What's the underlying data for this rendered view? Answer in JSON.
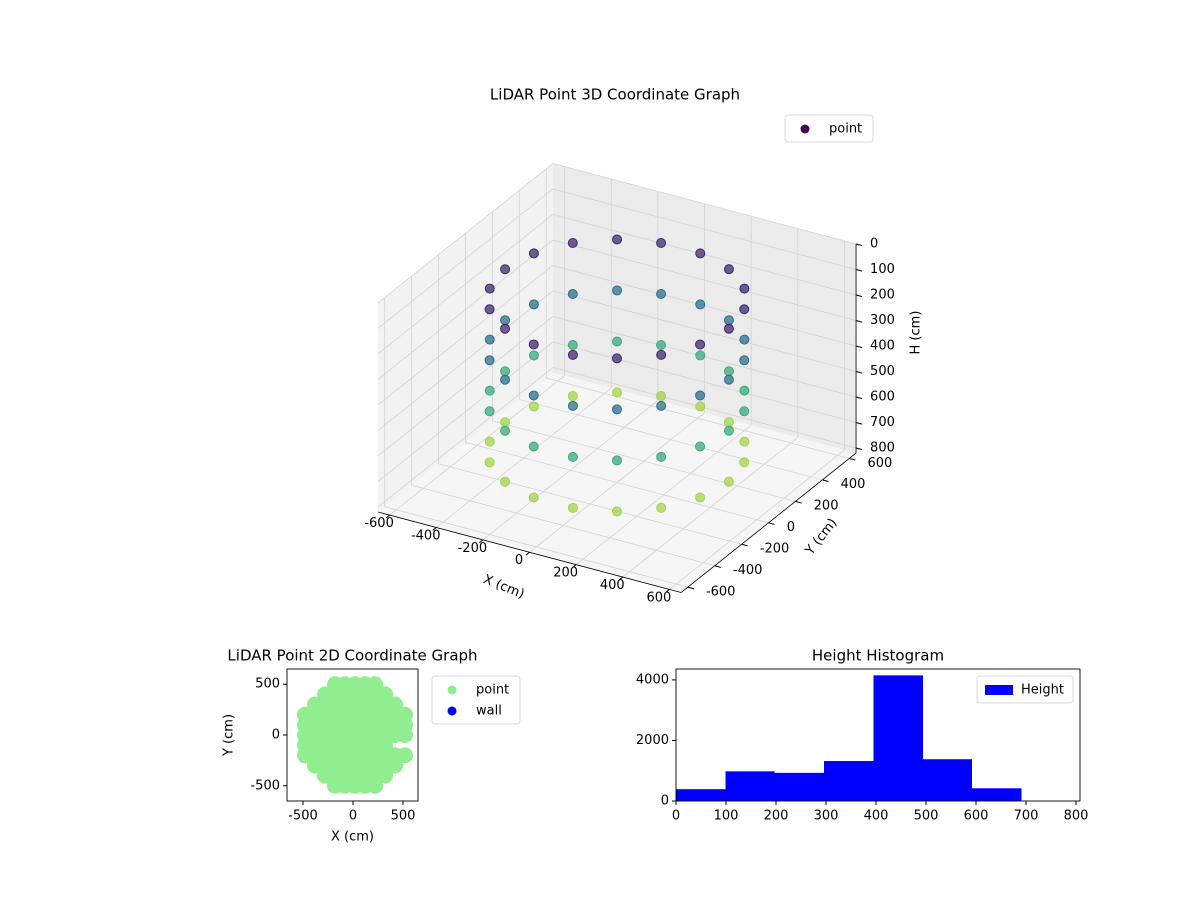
{
  "chart_data": [
    {
      "type": "scatter3d",
      "title": "LiDAR Point 3D Coordinate Graph",
      "xlabel": "X (cm)",
      "ylabel": "Y (cm)",
      "zlabel": "H (cm)",
      "xlim": [
        -650,
        650
      ],
      "ylim": [
        -650,
        650
      ],
      "zlim": [
        0,
        820
      ],
      "z_inverted": true,
      "xticks": [
        -600,
        -400,
        -200,
        0,
        200,
        400,
        600
      ],
      "yticks": [
        -600,
        -400,
        -200,
        0,
        200,
        400,
        600
      ],
      "zticks": [
        0,
        100,
        200,
        300,
        400,
        500,
        600,
        700,
        800
      ],
      "colormap": "viridis",
      "legend": "upper right",
      "grid": true,
      "series": [
        {
          "name": "point",
          "color": "#440154",
          "x": [
            480,
            451,
            368,
            240,
            84,
            -84,
            -240,
            -368,
            -451,
            -480,
            -451,
            -368,
            -240,
            -84,
            84,
            240,
            368,
            451,
            480,
            451,
            368,
            240,
            84,
            -84,
            -240,
            -368,
            -451,
            -480,
            -451,
            -368,
            -240,
            -84,
            84,
            240,
            368,
            451,
            480,
            451,
            368,
            240,
            84,
            -84,
            -240,
            -368,
            -451,
            -480,
            -451,
            -368,
            -240,
            -84,
            84,
            240,
            368,
            451,
            480,
            451,
            368,
            240,
            84,
            -84,
            -240,
            -368,
            -451,
            -480,
            -451,
            -368,
            -240,
            -84,
            84,
            240,
            368,
            451
          ],
          "y": [
            0,
            164,
            309,
            416,
            473,
            473,
            416,
            309,
            164,
            0,
            -164,
            -309,
            -416,
            -473,
            -473,
            -416,
            -309,
            -164,
            0,
            164,
            309,
            416,
            473,
            473,
            416,
            309,
            164,
            0,
            -164,
            -309,
            -416,
            -473,
            -473,
            -416,
            -309,
            -164,
            0,
            164,
            309,
            416,
            473,
            473,
            416,
            309,
            164,
            0,
            -164,
            -309,
            -416,
            -473,
            -473,
            -416,
            -309,
            -164,
            0,
            164,
            309,
            416,
            473,
            473,
            416,
            309,
            164,
            0,
            -164,
            -309,
            -416,
            -473,
            -473,
            -416,
            -309,
            -164
          ],
          "z": [
            100,
            100,
            100,
            100,
            100,
            100,
            100,
            100,
            100,
            100,
            100,
            100,
            100,
            100,
            100,
            100,
            100,
            100,
            300,
            300,
            300,
            300,
            300,
            300,
            300,
            300,
            300,
            300,
            300,
            300,
            300,
            300,
            300,
            300,
            300,
            300,
            500,
            500,
            500,
            500,
            500,
            500,
            500,
            500,
            500,
            500,
            500,
            500,
            500,
            500,
            500,
            500,
            500,
            500,
            700,
            700,
            700,
            700,
            700,
            700,
            700,
            700,
            700,
            700,
            700,
            700,
            700,
            700,
            700,
            700,
            700,
            700
          ]
        }
      ]
    },
    {
      "type": "scatter",
      "title": "LiDAR Point 2D Coordinate Graph",
      "xlabel": "X (cm)",
      "ylabel": "Y (cm)",
      "xlim": [
        -660,
        650
      ],
      "ylim": [
        -650,
        650
      ],
      "xticks": [
        -500,
        0,
        500
      ],
      "yticks": [
        -500,
        0,
        500
      ],
      "legend": "outside right",
      "series": [
        {
          "name": "point",
          "color": "#90ee90",
          "x": [
            -180,
            -80,
            20,
            120,
            220,
            -280,
            -180,
            -80,
            20,
            120,
            220,
            320,
            -380,
            -280,
            -180,
            -80,
            20,
            120,
            220,
            320,
            420,
            -480,
            -380,
            -280,
            -180,
            -80,
            20,
            120,
            220,
            320,
            420,
            520,
            -480,
            -380,
            -280,
            -180,
            -80,
            20,
            120,
            220,
            320,
            420,
            520,
            -480,
            -380,
            -280,
            -180,
            -80,
            20,
            120,
            220,
            320,
            420,
            520,
            -480,
            -380,
            -280,
            -180,
            -80,
            20,
            120,
            220,
            320,
            -480,
            -380,
            -280,
            -180,
            -80,
            20,
            120,
            220,
            320,
            420,
            520,
            -380,
            -280,
            -180,
            -80,
            20,
            120,
            220,
            320,
            420,
            -280,
            -180,
            -80,
            20,
            120,
            220,
            320,
            -180,
            -80,
            20,
            120,
            220
          ],
          "y": [
            500,
            500,
            500,
            500,
            500,
            400,
            400,
            400,
            400,
            400,
            400,
            400,
            300,
            300,
            300,
            300,
            300,
            300,
            300,
            300,
            300,
            200,
            200,
            200,
            200,
            200,
            200,
            200,
            200,
            200,
            200,
            200,
            100,
            100,
            100,
            100,
            100,
            100,
            100,
            100,
            100,
            100,
            100,
            0,
            0,
            0,
            0,
            0,
            0,
            0,
            0,
            0,
            0,
            0,
            -100,
            -100,
            -100,
            -100,
            -100,
            -100,
            -100,
            -100,
            -100,
            -200,
            -200,
            -200,
            -200,
            -200,
            -200,
            -200,
            -200,
            -200,
            -200,
            -200,
            -300,
            -300,
            -300,
            -300,
            -300,
            -300,
            -300,
            -300,
            -300,
            -400,
            -400,
            -400,
            -400,
            -400,
            -400,
            -400,
            -500,
            -500,
            -500,
            -500,
            -500
          ]
        },
        {
          "name": "wall",
          "color": "#0000ff",
          "x": [],
          "y": []
        }
      ]
    },
    {
      "type": "histogram",
      "title": "Height Histogram",
      "name": "Height",
      "color": "#0000ff",
      "legend": "upper right",
      "bins": [
        0,
        99,
        197,
        296,
        395,
        494,
        592,
        691,
        790
      ],
      "values": [
        390,
        980,
        930,
        1320,
        4150,
        1380,
        420,
        0
      ],
      "xlim": [
        0,
        808
      ],
      "ylim": [
        0,
        4360
      ],
      "xticks": [
        0,
        100,
        200,
        300,
        400,
        500,
        600,
        700,
        800
      ],
      "yticks": [
        0,
        2000,
        4000
      ]
    }
  ]
}
